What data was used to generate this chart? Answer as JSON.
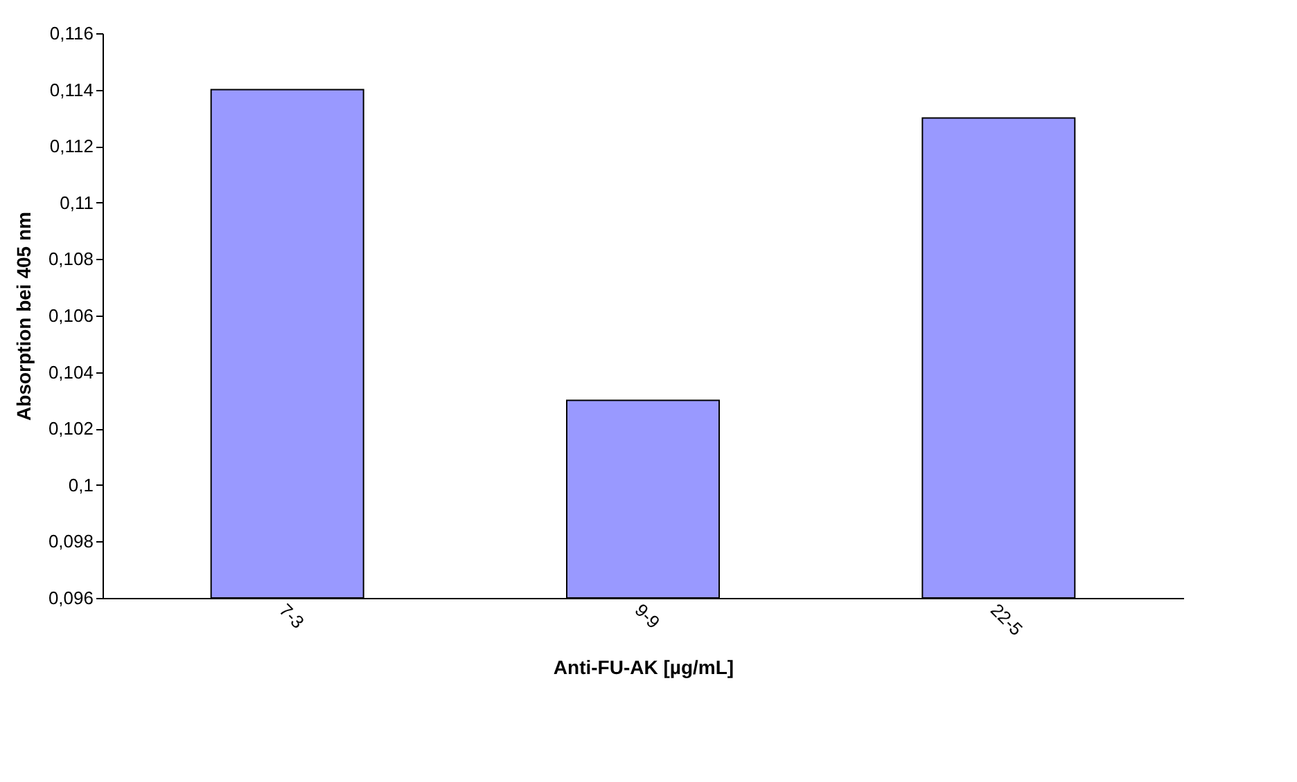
{
  "chart_data": {
    "type": "bar",
    "xlabel": "Anti-FU-AK [µg/mL]",
    "ylabel": "Absorption bei 405 nm",
    "categories": [
      "7-3",
      "9-9",
      "22-5"
    ],
    "values": [
      0.114,
      0.103,
      0.113
    ],
    "color": "#9999ff",
    "ylim": [
      0.096,
      0.116
    ],
    "yticks": [
      {
        "value": 0.096,
        "label": "0,096"
      },
      {
        "value": 0.098,
        "label": "0,098"
      },
      {
        "value": 0.1,
        "label": "0,1"
      },
      {
        "value": 0.102,
        "label": "0,102"
      },
      {
        "value": 0.104,
        "label": "0,104"
      },
      {
        "value": 0.106,
        "label": "0,106"
      },
      {
        "value": 0.108,
        "label": "0,108"
      },
      {
        "value": 0.11,
        "label": "0,11"
      },
      {
        "value": 0.112,
        "label": "0,112"
      },
      {
        "value": 0.114,
        "label": "0,114"
      },
      {
        "value": 0.116,
        "label": "0,116"
      }
    ],
    "grid": false
  }
}
